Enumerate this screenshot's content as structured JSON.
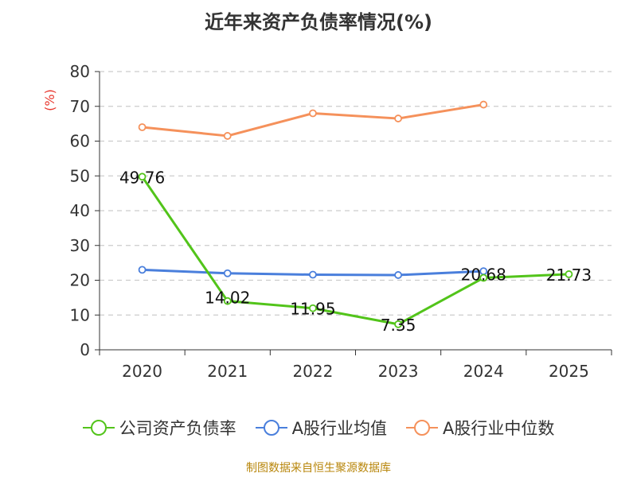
{
  "chart_data": {
    "type": "line",
    "title": "近年来资产负债率情况(%)",
    "ylabel": "(%)",
    "ylim": [
      0,
      80
    ],
    "yticks": [
      "0",
      "10",
      "20",
      "30",
      "40",
      "50",
      "60",
      "70",
      "80"
    ],
    "categories": [
      "2020",
      "2021",
      "2022",
      "2023",
      "2024",
      "2025"
    ],
    "grid": true,
    "legend_position": "bottom",
    "series": [
      {
        "name": "公司资产负债率",
        "color": "#52c41a",
        "values": [
          49.76,
          14.02,
          11.95,
          7.35,
          20.68,
          21.73
        ],
        "labels": [
          "49.76",
          "14.02",
          "11.95",
          "7.35",
          "20.68",
          "21.73"
        ]
      },
      {
        "name": "A股行业均值",
        "color": "#4a7fdc",
        "values": [
          23.0,
          22.0,
          21.6,
          21.5,
          22.6,
          null
        ]
      },
      {
        "name": "A股行业中位数",
        "color": "#f5915b",
        "values": [
          64.0,
          61.5,
          68.0,
          66.5,
          70.5,
          null
        ]
      }
    ],
    "source": "制图数据来自恒生聚源数据库"
  }
}
